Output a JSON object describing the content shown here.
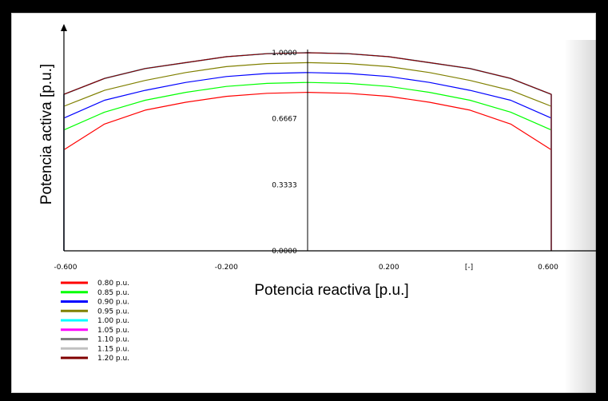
{
  "chart_data": {
    "type": "line",
    "title": "",
    "xlabel": "Potencia reactiva [p.u.]",
    "ylabel": "Potencia activa [p.u.]",
    "xlim": [
      -0.6,
      0.6
    ],
    "ylim": [
      0,
      1.0
    ],
    "x_ticks": [
      "-0.600",
      "-0.200",
      "0.200",
      "0.600"
    ],
    "x_unit_label": "[-]",
    "y_ticks": [
      "0.0000",
      "0.3333",
      "0.6667",
      "1.0000"
    ],
    "legend_position": "bottom-left",
    "x": [
      -0.6,
      -0.5,
      -0.4,
      -0.3,
      -0.2,
      -0.1,
      0.0,
      0.1,
      0.2,
      0.3,
      0.4,
      0.5,
      0.6
    ],
    "series": [
      {
        "name": "0.80 p.u.",
        "color": "#ff0000",
        "values": [
          0.51,
          0.64,
          0.71,
          0.75,
          0.78,
          0.795,
          0.8,
          0.795,
          0.78,
          0.75,
          0.71,
          0.64,
          0.51
        ]
      },
      {
        "name": "0.85 p.u.",
        "color": "#00ff00",
        "values": [
          0.61,
          0.7,
          0.76,
          0.8,
          0.83,
          0.845,
          0.85,
          0.845,
          0.83,
          0.8,
          0.76,
          0.7,
          0.61
        ]
      },
      {
        "name": "0.90 p.u.",
        "color": "#0000ff",
        "values": [
          0.67,
          0.76,
          0.81,
          0.85,
          0.88,
          0.895,
          0.9,
          0.895,
          0.88,
          0.85,
          0.81,
          0.76,
          0.67
        ]
      },
      {
        "name": "0.95 p.u.",
        "color": "#808000",
        "values": [
          0.73,
          0.81,
          0.86,
          0.9,
          0.93,
          0.945,
          0.95,
          0.945,
          0.93,
          0.9,
          0.86,
          0.81,
          0.73
        ]
      },
      {
        "name": "1.00 p.u.",
        "color": "#00ffff",
        "values": [
          0.79,
          0.87,
          0.92,
          0.95,
          0.98,
          0.995,
          1.0,
          0.995,
          0.98,
          0.95,
          0.92,
          0.87,
          0.79
        ]
      },
      {
        "name": "1.05 p.u.",
        "color": "#ff00ff",
        "values": [
          0.79,
          0.87,
          0.92,
          0.95,
          0.98,
          0.995,
          1.0,
          0.995,
          0.98,
          0.95,
          0.92,
          0.87,
          0.79
        ]
      },
      {
        "name": "1.10 p.u.",
        "color": "#808080",
        "values": [
          0.79,
          0.87,
          0.92,
          0.95,
          0.98,
          0.995,
          1.0,
          0.995,
          0.98,
          0.95,
          0.92,
          0.87,
          0.79
        ]
      },
      {
        "name": "1.15 p.u.",
        "color": "#c0c0c0",
        "values": [
          0.79,
          0.87,
          0.92,
          0.95,
          0.98,
          0.995,
          1.0,
          0.995,
          0.98,
          0.95,
          0.92,
          0.87,
          0.79
        ]
      },
      {
        "name": "1.20 p.u.",
        "color": "#800000",
        "values": [
          0.79,
          0.87,
          0.92,
          0.95,
          0.98,
          0.995,
          1.0,
          0.995,
          0.98,
          0.95,
          0.92,
          0.87,
          0.79
        ]
      }
    ]
  }
}
